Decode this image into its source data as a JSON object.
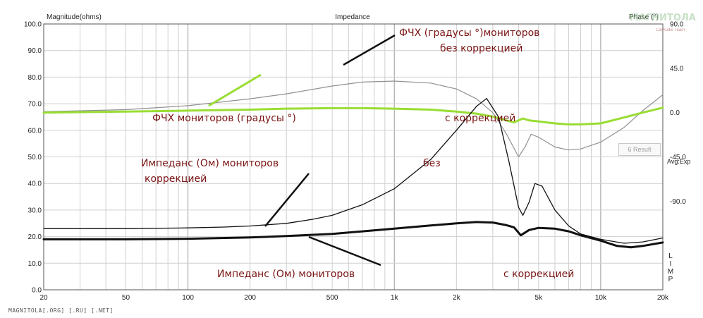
{
  "chart_data": {
    "type": "line",
    "title": "Impedance",
    "ylabel_left": "Magnitude(ohms)",
    "ylabel_right": "Phase (°)",
    "x_scale": "log",
    "xlim": [
      20,
      20000
    ],
    "ylim_left": [
      0,
      100
    ],
    "ylim_right": [
      -180,
      90
    ],
    "x_ticks": [
      {
        "value": 20,
        "label": "20"
      },
      {
        "value": 50,
        "label": "50"
      },
      {
        "value": 100,
        "label": "100"
      },
      {
        "value": 200,
        "label": "200"
      },
      {
        "value": 500,
        "label": "500"
      },
      {
        "value": 1000,
        "label": "1k"
      },
      {
        "value": 2000,
        "label": "2k"
      },
      {
        "value": 5000,
        "label": "5k"
      },
      {
        "value": 10000,
        "label": "10k"
      },
      {
        "value": 20000,
        "label": "20k"
      }
    ],
    "y_left_ticks": [
      "0.0",
      "10.0",
      "20.0",
      "30.0",
      "40.0",
      "50.0",
      "60.0",
      "70.0",
      "80.0",
      "90.0",
      "100.0"
    ],
    "y_right_ticks": [
      "90.0",
      "45.0",
      "0.0",
      "-45.0",
      "-90.0"
    ],
    "grid": true,
    "series": [
      {
        "axis": "right",
        "color": "#909090",
        "width": 1.2,
        "x": [
          20,
          50,
          100,
          200,
          300,
          500,
          700,
          1000,
          1500,
          2000,
          2500,
          3000,
          3500,
          4000,
          4300,
          4600,
          5000,
          6000,
          7000,
          8000,
          10000,
          13000,
          16000,
          20000
        ],
        "y": [
          1,
          3,
          7,
          14,
          19,
          27,
          31,
          32,
          30,
          24,
          14,
          0,
          -22,
          -45,
          -35,
          -22,
          -25,
          -35,
          -38,
          -37,
          -30,
          -15,
          2,
          18
        ]
      },
      {
        "axis": "right",
        "color": "#99dd33",
        "width": 3,
        "x": [
          20,
          50,
          100,
          200,
          300,
          500,
          700,
          1000,
          1500,
          2000,
          2500,
          3000,
          3500,
          3800,
          4200,
          4500,
          5000,
          6000,
          7000,
          8000,
          10000,
          13000,
          16000,
          20000
        ],
        "y": [
          0,
          1,
          2,
          3,
          4,
          4.5,
          4.5,
          4,
          3,
          1,
          -1,
          -4,
          -8,
          -10,
          -6,
          -8,
          -9,
          -11,
          -12,
          -12,
          -11,
          -5,
          0,
          5
        ]
      },
      {
        "axis": "left",
        "color": "#111111",
        "width": 1.3,
        "x": [
          20,
          50,
          100,
          150,
          200,
          300,
          400,
          500,
          700,
          1000,
          1500,
          2000,
          2500,
          2800,
          3200,
          3600,
          4000,
          4200,
          4500,
          4800,
          5200,
          6000,
          7000,
          8000,
          10000,
          13000,
          16000,
          20000
        ],
        "y": [
          23,
          23,
          23.3,
          23.6,
          24,
          25,
          26.5,
          28,
          32,
          38,
          49,
          60,
          69,
          72,
          65,
          48,
          31,
          28,
          33,
          40,
          39,
          30,
          24,
          21,
          19,
          17.5,
          18,
          19.5
        ]
      },
      {
        "axis": "left",
        "color": "#111111",
        "width": 3,
        "x": [
          20,
          50,
          100,
          200,
          300,
          500,
          700,
          1000,
          1500,
          2000,
          2500,
          3000,
          3500,
          3800,
          4100,
          4500,
          5000,
          6000,
          7000,
          8000,
          10000,
          12000,
          14000,
          16000,
          20000
        ],
        "y": [
          19,
          19,
          19.2,
          19.7,
          20.2,
          21,
          22,
          23,
          24.2,
          25,
          25.5,
          25.3,
          24.3,
          23.5,
          20.5,
          22.5,
          23.3,
          23,
          22,
          20.5,
          18.5,
          16.5,
          16,
          16.5,
          17.8
        ]
      }
    ]
  },
  "annotations": {
    "phase_no_corr_line1": "ФЧХ (градусы °)мониторов",
    "phase_no_corr_line2": "без коррекцией",
    "phase_corr_a": "ФЧХ мониторов (градусы °)",
    "phase_corr_b": "с коррекцией",
    "imp_no_corr_a": "Импеданс (Ом) мониторов",
    "imp_no_corr_b": "без",
    "imp_no_corr_line2": "коррекцией",
    "imp_corr_a": "Импеданс (Ом) мониторов",
    "imp_corr_b": "с коррекцией"
  },
  "ui": {
    "result_button": "6 Result",
    "avg_label": "Avg:Exp",
    "limp_letters": [
      "L",
      "I",
      "M",
      "P"
    ],
    "logo": "МАГНИТОЛА",
    "logo_sub": "CarAudio Team",
    "watermark": "MAGNITOLA[.ORG] [.RU] [.NET]"
  }
}
